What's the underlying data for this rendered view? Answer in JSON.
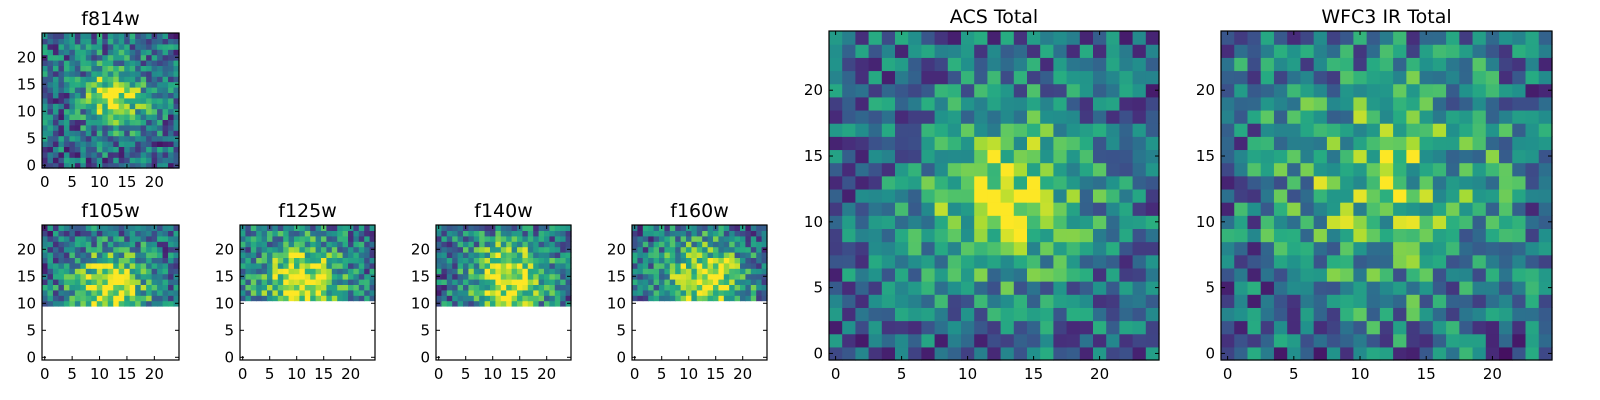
{
  "colormap": {
    "name": "viridis",
    "low": "#440154",
    "mid": "#21918c",
    "high": "#fde725"
  },
  "chart_data": [
    {
      "type": "heatmap",
      "title": "f814w",
      "xlim": [
        0,
        24
      ],
      "ylim": [
        0,
        24
      ],
      "xticks": [
        0,
        5,
        10,
        15,
        20
      ],
      "yticks": [
        0,
        5,
        10,
        15,
        20
      ],
      "data_rows": [
        0,
        24
      ],
      "center": [
        13,
        13
      ],
      "peak": 0.8,
      "sigma": 4.0,
      "noise": 0.3,
      "seed": 11
    },
    {
      "type": "heatmap",
      "title": "f105w",
      "xlim": [
        0,
        24
      ],
      "ylim": [
        0,
        24
      ],
      "xticks": [
        0,
        5,
        10,
        15,
        20
      ],
      "yticks": [
        0,
        5,
        10,
        15,
        20
      ],
      "data_rows": [
        10,
        24
      ],
      "center": [
        12,
        13
      ],
      "peak": 0.85,
      "sigma": 5.0,
      "noise": 0.3,
      "seed": 23
    },
    {
      "type": "heatmap",
      "title": "f125w",
      "xlim": [
        0,
        24
      ],
      "ylim": [
        0,
        24
      ],
      "xticks": [
        0,
        5,
        10,
        15,
        20
      ],
      "yticks": [
        0,
        5,
        10,
        15,
        20
      ],
      "data_rows": [
        11,
        24
      ],
      "center": [
        11,
        14
      ],
      "peak": 0.85,
      "sigma": 5.5,
      "noise": 0.3,
      "seed": 37
    },
    {
      "type": "heatmap",
      "title": "f140w",
      "xlim": [
        0,
        24
      ],
      "ylim": [
        0,
        24
      ],
      "xticks": [
        0,
        5,
        10,
        15,
        20
      ],
      "yticks": [
        0,
        5,
        10,
        15,
        20
      ],
      "data_rows": [
        10,
        24
      ],
      "center": [
        13,
        15
      ],
      "peak": 0.85,
      "sigma": 5.0,
      "noise": 0.3,
      "seed": 41
    },
    {
      "type": "heatmap",
      "title": "f160w",
      "xlim": [
        0,
        24
      ],
      "ylim": [
        0,
        24
      ],
      "xticks": [
        0,
        5,
        10,
        15,
        20
      ],
      "yticks": [
        0,
        5,
        10,
        15,
        20
      ],
      "data_rows": [
        11,
        24
      ],
      "center": [
        13,
        14
      ],
      "peak": 0.8,
      "sigma": 5.5,
      "noise": 0.3,
      "seed": 53
    },
    {
      "type": "heatmap",
      "title": "ACS Total",
      "xlim": [
        0,
        24
      ],
      "ylim": [
        0,
        24
      ],
      "xticks": [
        0,
        5,
        10,
        15,
        20
      ],
      "yticks": [
        0,
        5,
        10,
        15,
        20
      ],
      "data_rows": [
        0,
        24
      ],
      "center": [
        13,
        12
      ],
      "peak": 0.75,
      "sigma": 4.5,
      "noise": 0.28,
      "seed": 67
    },
    {
      "type": "heatmap",
      "title": "WFC3 IR Total",
      "xlim": [
        0,
        24
      ],
      "ylim": [
        0,
        24
      ],
      "xticks": [
        0,
        5,
        10,
        15,
        20
      ],
      "yticks": [
        0,
        5,
        10,
        15,
        20
      ],
      "data_rows": [
        0,
        24
      ],
      "center": [
        12,
        13
      ],
      "peak": 0.55,
      "sigma": 6.0,
      "noise": 0.32,
      "seed": 79
    }
  ]
}
